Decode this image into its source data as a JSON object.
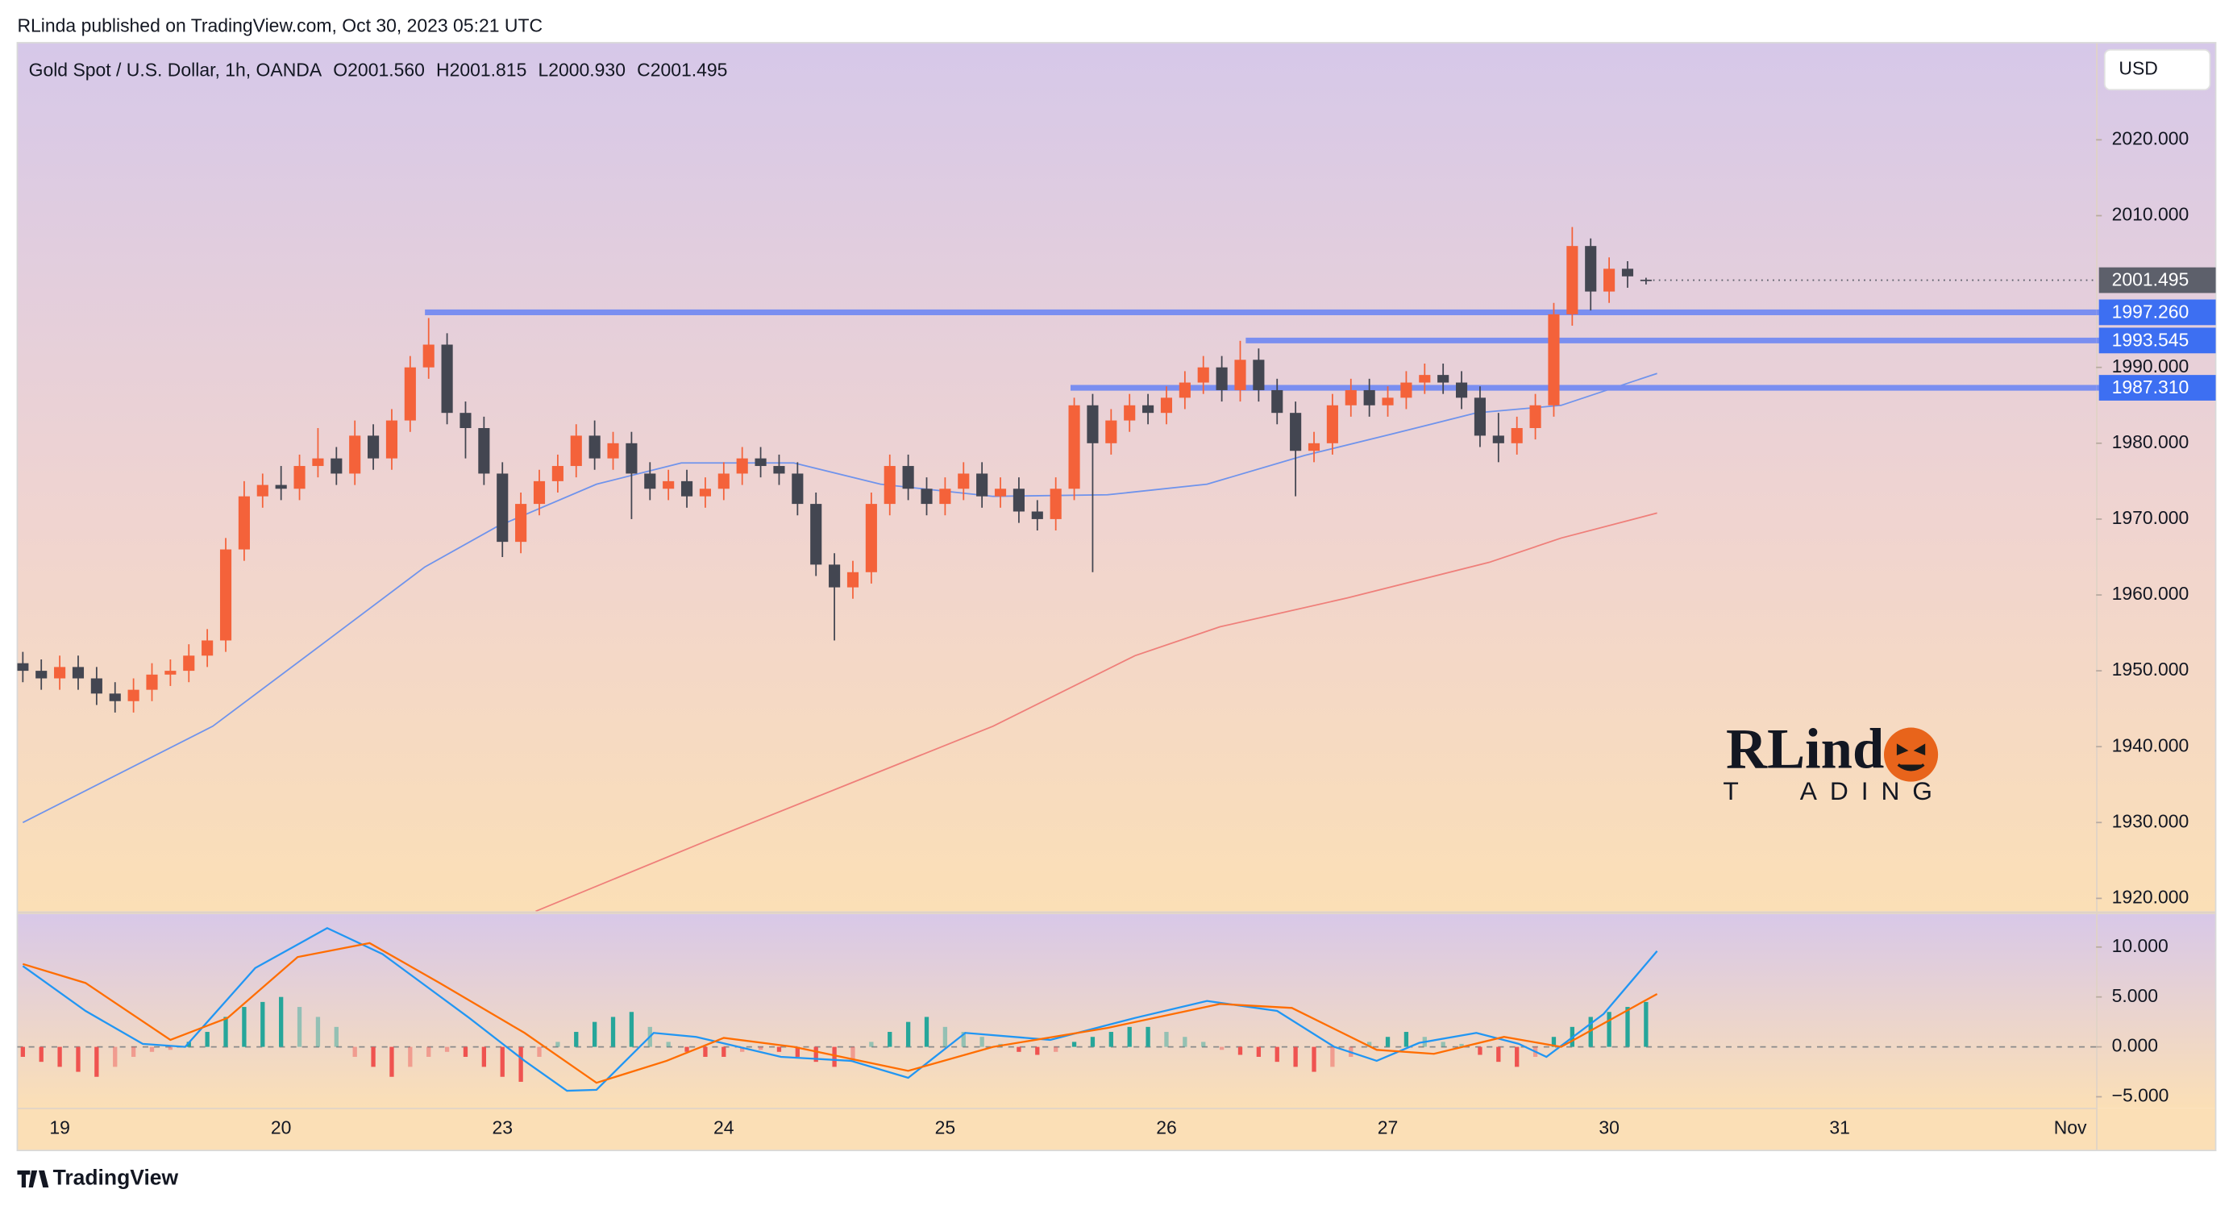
{
  "chart_data": {
    "type": "candlestick",
    "publisher": "RLinda published on TradingView.com, Oct 30, 2023 05:21 UTC",
    "symbol": "Gold Spot / U.S. Dollar, 1h, OANDA",
    "legend_values": [
      "O2001.560",
      "H2001.815",
      "L2000.930",
      "C2001.495"
    ],
    "currency": "USD",
    "brand": "TradingView",
    "watermark": [
      "RLind",
      "T",
      "ADING"
    ],
    "up_color": "#f4623a",
    "down_color": "#434651",
    "open": [
      1951,
      1950,
      1949,
      1950.5,
      1949,
      1947,
      1946,
      1947.5,
      1949.5,
      1950,
      1952,
      1954,
      1966,
      1973,
      1974.5,
      1974,
      1977,
      1978,
      1976,
      1981,
      1978,
      1983,
      1990,
      1993,
      1984,
      1982,
      1976,
      1967,
      1972,
      1975,
      1977,
      1981,
      1978,
      1980,
      1976,
      1974,
      1975,
      1973,
      1974,
      1976,
      1978,
      1977,
      1976,
      1972,
      1964,
      1961,
      1963,
      1972,
      1977,
      1974,
      1972,
      1974,
      1976,
      1973,
      1974,
      1971,
      1970,
      1974,
      1985,
      1980,
      1983,
      1985,
      1984,
      1986,
      1988,
      1990,
      1987,
      1991,
      1987,
      1984,
      1979,
      1980,
      1985,
      1987,
      1985,
      1986,
      1988,
      1989,
      1988,
      1986,
      1981,
      1980,
      1982,
      1985,
      1997,
      2006,
      2000,
      2003,
      2001.56
    ],
    "high": [
      1952.5,
      1951.5,
      1952,
      1952,
      1950.5,
      1948.5,
      1949,
      1951,
      1951.5,
      1953.5,
      1955.5,
      1967.5,
      1975,
      1976,
      1977,
      1978.5,
      1982,
      1979.5,
      1983,
      1982.5,
      1984.5,
      1991.5,
      1996.5,
      1994.5,
      1985.5,
      1983.5,
      1977.5,
      1973.5,
      1976.5,
      1978.5,
      1982.5,
      1983,
      1981.5,
      1981.5,
      1977.5,
      1976.5,
      1976.5,
      1975.5,
      1977.5,
      1979.5,
      1979.5,
      1978.5,
      1977.5,
      1973.5,
      1965.5,
      1964.5,
      1973.5,
      1978.5,
      1978.5,
      1975.5,
      1975.5,
      1977.5,
      1977.5,
      1975.5,
      1975.5,
      1972.5,
      1975.5,
      1986,
      1986.5,
      1984.5,
      1986.5,
      1986.5,
      1987.5,
      1989.5,
      1991.5,
      1991.5,
      1993.5,
      1992.5,
      1988.5,
      1985.5,
      1981.5,
      1986.5,
      1988.5,
      1988.5,
      1987.5,
      1989.5,
      1990.5,
      1990.5,
      1989.5,
      1987.5,
      1984,
      1983.5,
      1986.5,
      1998.5,
      2008.5,
      2007,
      2004.5,
      2004,
      2001.815
    ],
    "low": [
      1948.5,
      1947.5,
      1947.5,
      1947.5,
      1945.5,
      1944.5,
      1944.5,
      1946,
      1948,
      1948.5,
      1950.5,
      1952.5,
      1964.5,
      1971.5,
      1972.5,
      1972.5,
      1975.5,
      1974.5,
      1974.5,
      1976.5,
      1976.5,
      1981.5,
      1988.5,
      1982.5,
      1978,
      1974.5,
      1965,
      1965.5,
      1970.5,
      1973.5,
      1975.5,
      1976.5,
      1976.5,
      1970,
      1972.5,
      1972.5,
      1971.5,
      1971.5,
      1972.5,
      1974.5,
      1975.5,
      1974.5,
      1970.5,
      1962.5,
      1954,
      1959.5,
      1961.5,
      1970.5,
      1972.5,
      1970.5,
      1970.5,
      1972.5,
      1971.5,
      1971.5,
      1969.5,
      1968.5,
      1968.5,
      1972.5,
      1963,
      1978.5,
      1981.5,
      1982.5,
      1982.5,
      1984.5,
      1986.5,
      1985.5,
      1985.5,
      1985.5,
      1982.5,
      1973,
      1977.5,
      1978.5,
      1983.5,
      1983.5,
      1983.5,
      1984.5,
      1986.5,
      1986.5,
      1984.5,
      1979.5,
      1977.5,
      1978.5,
      1980.5,
      1983.5,
      1995.5,
      1997.5,
      1998.5,
      2000.5,
      2000.93
    ],
    "close": [
      1950,
      1949,
      1950.5,
      1949,
      1947,
      1946,
      1947.5,
      1949.5,
      1950,
      1952,
      1954,
      1966,
      1973,
      1974.5,
      1974,
      1977,
      1978,
      1976,
      1981,
      1978,
      1983,
      1990,
      1993,
      1984,
      1982,
      1976,
      1967,
      1972,
      1975,
      1977,
      1981,
      1978,
      1980,
      1976,
      1974,
      1975,
      1973,
      1974,
      1976,
      1978,
      1977,
      1976,
      1972,
      1964,
      1961,
      1963,
      1972,
      1977,
      1974,
      1972,
      1974,
      1976,
      1973,
      1974,
      1971,
      1970,
      1974,
      1985,
      1980,
      1983,
      1985,
      1984,
      1986,
      1988,
      1990,
      1987,
      1991,
      1987,
      1984,
      1979,
      1980,
      1985,
      1987,
      1985,
      1986,
      1988,
      1989,
      1988,
      1986,
      1981,
      1980,
      1982,
      1985,
      1997,
      2006,
      2000,
      2003,
      2002,
      2001.495
    ],
    "last_price_label": "2001.495",
    "ylim": [
      1918.3,
      2032.8
    ],
    "yticks": [
      {
        "value": 1920,
        "label": "1920.000"
      },
      {
        "value": 1930,
        "label": "1930.000"
      },
      {
        "value": 1940,
        "label": "1940.000"
      },
      {
        "value": 1950,
        "label": "1950.000"
      },
      {
        "value": 1960,
        "label": "1960.000"
      },
      {
        "value": 1970,
        "label": "1970.000"
      },
      {
        "value": 1980,
        "label": "1980.000"
      },
      {
        "value": 1990,
        "label": "1990.000"
      },
      {
        "value": 2010,
        "label": "2010.000"
      },
      {
        "value": 2020,
        "label": "2020.000"
      }
    ],
    "xlim": [
      -0.3,
      112.4
    ],
    "xticks": [
      {
        "value": 2,
        "label": "19"
      },
      {
        "value": 14,
        "label": "20"
      },
      {
        "value": 26,
        "label": "23"
      },
      {
        "value": 38,
        "label": "24"
      },
      {
        "value": 50,
        "label": "25"
      },
      {
        "value": 62,
        "label": "26"
      },
      {
        "value": 74,
        "label": "27"
      },
      {
        "value": 86,
        "label": "30"
      },
      {
        "value": 98.5,
        "label": "31"
      },
      {
        "value": 111,
        "label": "Nov"
      }
    ],
    "grid": false,
    "overlays": [
      {
        "color": "#6f93ec",
        "x": [
          0,
          10.3,
          16.5,
          21.8,
          25.7,
          31.1,
          35.7,
          41.8,
          46.5,
          52.6,
          58.8,
          64.2,
          69.5,
          74.2,
          78.8,
          83.4,
          88.6
        ],
        "values": [
          1930,
          1942.7,
          1954,
          1963.7,
          1969,
          1974.6,
          1977.4,
          1977.4,
          1974.6,
          1973,
          1973.2,
          1974.6,
          1978.4,
          1981.2,
          1984,
          1985,
          1989.2
        ]
      },
      {
        "color": "#ef7f7a",
        "x": [
          27.8,
          37.2,
          44.9,
          52.6,
          60.3,
          64.9,
          71.8,
          79.5,
          83.4,
          88.6
        ],
        "values": [
          1918.3,
          1927.7,
          1935.2,
          1942.7,
          1952,
          1955.8,
          1959.6,
          1964.3,
          1967.5,
          1970.8
        ]
      }
    ],
    "levels": [
      {
        "value": 1997.26,
        "label": "1997.260",
        "start": 21.8
      },
      {
        "value": 1993.545,
        "label": "1993.545",
        "start": 66.3
      },
      {
        "value": 1987.31,
        "label": "1987.310",
        "start": 56.8
      }
    ],
    "level_color": "#7a8ef0",
    "level_label_color": "#3d6ff2",
    "macd": {
      "ylim": [
        -6.1,
        13.3
      ],
      "yticks": [
        {
          "value": 10,
          "label": "10.000"
        },
        {
          "value": 5,
          "label": "5.000"
        },
        {
          "value": 0,
          "label": "0.000"
        },
        {
          "value": -5,
          "label": "−5.000"
        }
      ],
      "histogram": [
        -1,
        -1.5,
        -2,
        -2.5,
        -3,
        -2,
        -1,
        -0.5,
        -0.3,
        0.5,
        1.5,
        3,
        4,
        4.5,
        5,
        4,
        3,
        2,
        -1,
        -2,
        -3,
        -2,
        -1,
        -0.5,
        -1,
        -2,
        -3,
        -3.5,
        -1,
        0.5,
        1.5,
        2.5,
        3,
        3.5,
        2,
        0.5,
        -0.5,
        -1,
        -1,
        -0.5,
        -0.3,
        -0.5,
        -1,
        -1.5,
        -2,
        -1.5,
        0.5,
        1.5,
        2.5,
        3,
        2,
        1.5,
        1,
        0.3,
        -0.5,
        -0.8,
        -0.5,
        0.5,
        1,
        1.5,
        2,
        2,
        1.5,
        1,
        0.5,
        -0.3,
        -0.8,
        -1,
        -1.5,
        -2,
        -2.5,
        -2,
        -1,
        0.5,
        1,
        1.5,
        1,
        0.5,
        0.3,
        -0.8,
        -1.5,
        -2,
        -1,
        1,
        2,
        3,
        3.5,
        4,
        4.5
      ],
      "pos_color": "#26a69a",
      "neg_color": "#ef5350",
      "series": [
        {
          "color": "#2196f3",
          "x": [
            0,
            3.4,
            6.5,
            8.8,
            12.6,
            16.5,
            19.5,
            24.2,
            27.2,
            29.5,
            31.1,
            34.2,
            36.5,
            41.1,
            44.9,
            48,
            51.1,
            55.7,
            60.3,
            64.2,
            68,
            71.1,
            73.4,
            75.7,
            78.8,
            81.1,
            82.6,
            85.7,
            88.6
          ],
          "values": [
            8.1,
            3.6,
            0.3,
            0,
            7.9,
            11.9,
            9.3,
            2.9,
            -1.4,
            -4.4,
            -4.3,
            1.4,
            1,
            -1,
            -1.4,
            -3.1,
            1.4,
            0.7,
            2.9,
            4.6,
            3.6,
            0,
            -1.4,
            0.4,
            1.4,
            0.3,
            -1,
            3.3,
            9.6
          ]
        },
        {
          "color": "#ff6d00",
          "x": [
            0,
            3.4,
            8,
            11.1,
            14.9,
            18.8,
            22.6,
            27.2,
            31.1,
            34.9,
            38,
            41.8,
            48,
            52.6,
            58.8,
            64.9,
            68.8,
            73.4,
            76.5,
            80.3,
            83.4,
            88.6
          ],
          "values": [
            8.3,
            6.4,
            0.7,
            2.9,
            9,
            10.4,
            6.4,
            1.4,
            -3.6,
            -1.4,
            0.9,
            0,
            -2.4,
            0,
            1.9,
            4.3,
            3.9,
            -0.3,
            -0.7,
            1,
            0,
            5.3
          ]
        }
      ]
    }
  }
}
